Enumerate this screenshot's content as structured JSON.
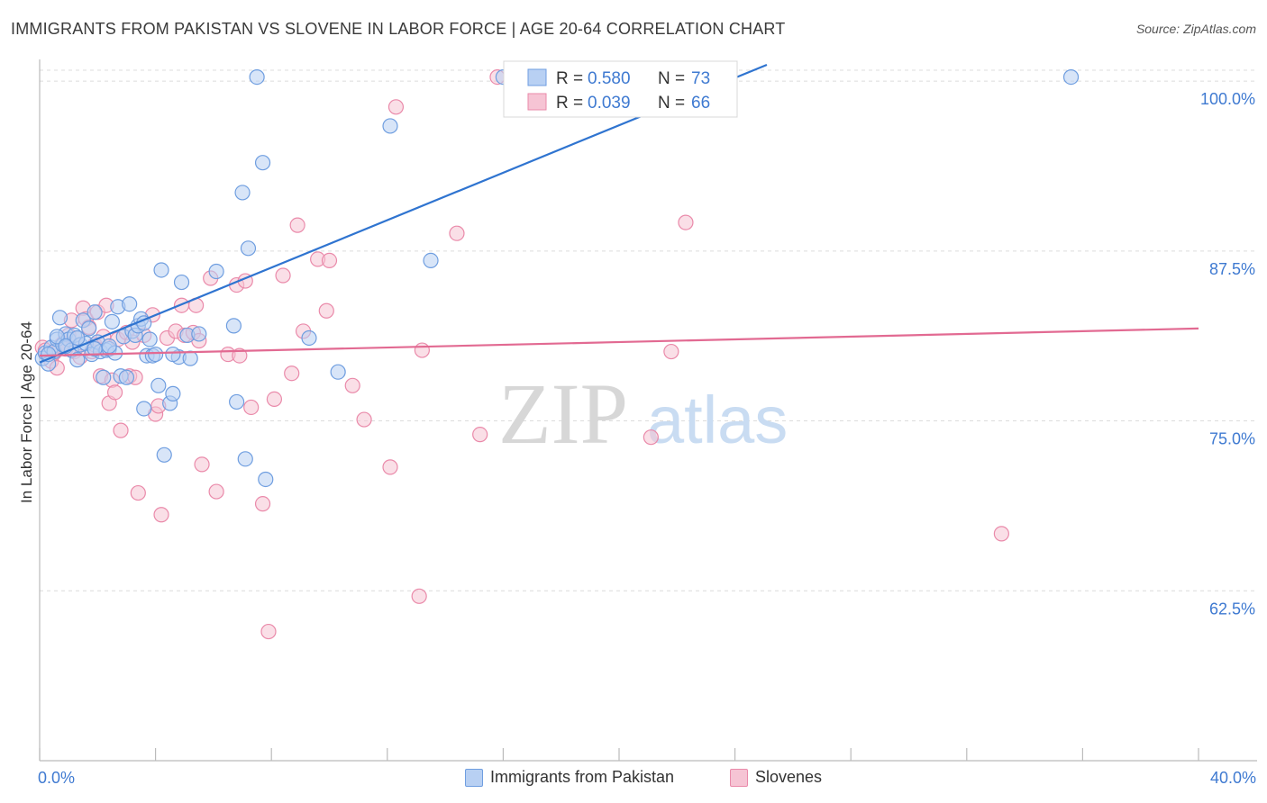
{
  "header": {
    "title": "IMMIGRANTS FROM PAKISTAN VS SLOVENE IN LABOR FORCE | AGE 20-64 CORRELATION CHART",
    "source": "Source: ZipAtlas.com"
  },
  "watermark": {
    "zip": "ZIP",
    "atlas": "atlas"
  },
  "colors": {
    "blue": "#6f9ee0",
    "blue_fill": "#b8d0f3",
    "blue_line": "#2f74d0",
    "pink": "#ea8aaa",
    "pink_fill": "#f6c4d4",
    "pink_line": "#e26a92",
    "tick_text": "#3f7ad1",
    "grid": "#dcdcdc"
  },
  "stats_legend": [
    {
      "r_label": "R =",
      "r_value": "0.580",
      "n_label": "N =",
      "n_value": "73"
    },
    {
      "r_label": "R =",
      "r_value": "0.039",
      "n_label": "N =",
      "n_value": "66"
    }
  ],
  "bottom_legend": [
    "Immigrants from Pakistan",
    "Slovenes"
  ],
  "chart_data": {
    "type": "scatter",
    "title": "IMMIGRANTS FROM PAKISTAN VS SLOVENE IN LABOR FORCE | AGE 20-64 CORRELATION CHART",
    "ylabel": "In Labor Force | Age 20-64",
    "xlabel": "",
    "xlim": [
      0,
      40
    ],
    "ylim": [
      50,
      101.2
    ],
    "x_tick_labels": [
      {
        "value": 0,
        "label": "0.0%"
      },
      {
        "value": 40,
        "label": "40.0%"
      }
    ],
    "y_tick_labels": [
      {
        "value": 100,
        "label": "100.0%"
      },
      {
        "value": 87.5,
        "label": "87.5%"
      },
      {
        "value": 75,
        "label": "75.0%"
      },
      {
        "value": 62.5,
        "label": "62.5%"
      }
    ],
    "series": [
      {
        "name": "Immigrants from Pakistan",
        "R": 0.58,
        "N": 73,
        "trend": {
          "x0": 0,
          "y0": 79.3,
          "x1": 40,
          "y1": 114.2
        },
        "points": [
          [
            0.1,
            79.6
          ],
          [
            0.2,
            80.0
          ],
          [
            0.3,
            79.2
          ],
          [
            0.4,
            80.4
          ],
          [
            0.5,
            80.1
          ],
          [
            0.6,
            81.0
          ],
          [
            0.7,
            82.6
          ],
          [
            0.8,
            80.6
          ],
          [
            0.9,
            81.4
          ],
          [
            1.0,
            81.0
          ],
          [
            1.1,
            80.2
          ],
          [
            1.2,
            81.3
          ],
          [
            1.3,
            79.5
          ],
          [
            1.4,
            80.6
          ],
          [
            1.5,
            82.4
          ],
          [
            1.6,
            80.7
          ],
          [
            1.7,
            81.8
          ],
          [
            1.8,
            79.9
          ],
          [
            1.9,
            83.0
          ],
          [
            2.0,
            80.8
          ],
          [
            2.1,
            80.1
          ],
          [
            2.2,
            78.2
          ],
          [
            2.3,
            80.2
          ],
          [
            2.4,
            80.3
          ],
          [
            2.5,
            82.3
          ],
          [
            2.6,
            80.0
          ],
          [
            2.7,
            83.4
          ],
          [
            2.8,
            78.3
          ],
          [
            2.9,
            81.2
          ],
          [
            3.0,
            78.2
          ],
          [
            3.1,
            83.6
          ],
          [
            3.2,
            81.6
          ],
          [
            3.3,
            81.3
          ],
          [
            3.4,
            82.0
          ],
          [
            3.5,
            82.5
          ],
          [
            3.6,
            75.9
          ],
          [
            3.7,
            79.8
          ],
          [
            3.8,
            81.0
          ],
          [
            3.9,
            79.8
          ],
          [
            4.0,
            79.9
          ],
          [
            4.1,
            77.6
          ],
          [
            4.2,
            86.1
          ],
          [
            4.3,
            72.5
          ],
          [
            4.5,
            76.3
          ],
          [
            4.6,
            77.0
          ],
          [
            4.8,
            79.7
          ],
          [
            4.9,
            85.2
          ],
          [
            5.1,
            81.3
          ],
          [
            5.2,
            79.6
          ],
          [
            5.5,
            81.4
          ],
          [
            6.1,
            86.0
          ],
          [
            6.7,
            82.0
          ],
          [
            6.8,
            76.4
          ],
          [
            7.0,
            91.8
          ],
          [
            7.1,
            72.2
          ],
          [
            7.2,
            87.7
          ],
          [
            7.5,
            100.3
          ],
          [
            7.7,
            94.0
          ],
          [
            7.8,
            70.7
          ],
          [
            9.3,
            81.1
          ],
          [
            10.3,
            78.6
          ],
          [
            12.1,
            96.7
          ],
          [
            13.5,
            86.8
          ],
          [
            16.0,
            100.3
          ],
          [
            35.6,
            100.3
          ],
          [
            0.6,
            81.2
          ],
          [
            0.9,
            80.5
          ],
          [
            1.3,
            81.1
          ],
          [
            2.4,
            80.5
          ],
          [
            3.6,
            82.2
          ],
          [
            0.3,
            79.9
          ],
          [
            1.9,
            80.3
          ],
          [
            4.6,
            79.9
          ]
        ]
      },
      {
        "name": "Slovenes",
        "R": 0.039,
        "N": 66,
        "trend": {
          "x0": 0,
          "y0": 79.8,
          "x1": 40,
          "y1": 81.8
        },
        "points": [
          [
            0.1,
            80.4
          ],
          [
            0.2,
            80.2
          ],
          [
            0.4,
            79.4
          ],
          [
            0.5,
            80.0
          ],
          [
            0.6,
            78.9
          ],
          [
            0.7,
            80.5
          ],
          [
            0.8,
            80.7
          ],
          [
            0.9,
            80.3
          ],
          [
            1.0,
            81.3
          ],
          [
            1.1,
            82.4
          ],
          [
            1.2,
            80.1
          ],
          [
            1.3,
            81.1
          ],
          [
            1.4,
            79.7
          ],
          [
            1.5,
            83.3
          ],
          [
            1.6,
            82.5
          ],
          [
            1.7,
            81.9
          ],
          [
            1.8,
            80.1
          ],
          [
            1.9,
            80.6
          ],
          [
            2.0,
            83.0
          ],
          [
            2.1,
            78.3
          ],
          [
            2.2,
            81.2
          ],
          [
            2.3,
            83.5
          ],
          [
            2.4,
            76.3
          ],
          [
            2.5,
            78.0
          ],
          [
            2.6,
            77.1
          ],
          [
            2.7,
            81.0
          ],
          [
            2.8,
            74.3
          ],
          [
            3.0,
            81.5
          ],
          [
            3.1,
            78.3
          ],
          [
            3.2,
            80.8
          ],
          [
            3.3,
            78.2
          ],
          [
            3.4,
            69.7
          ],
          [
            3.6,
            81.3
          ],
          [
            3.9,
            82.8
          ],
          [
            4.0,
            75.5
          ],
          [
            4.1,
            76.1
          ],
          [
            4.2,
            68.1
          ],
          [
            4.4,
            81.1
          ],
          [
            4.7,
            81.6
          ],
          [
            4.9,
            83.5
          ],
          [
            5.0,
            81.3
          ],
          [
            5.3,
            81.5
          ],
          [
            5.4,
            83.5
          ],
          [
            5.5,
            80.9
          ],
          [
            5.6,
            71.8
          ],
          [
            5.9,
            85.5
          ],
          [
            6.1,
            69.8
          ],
          [
            6.5,
            79.9
          ],
          [
            6.8,
            85.0
          ],
          [
            6.9,
            79.8
          ],
          [
            7.1,
            85.3
          ],
          [
            7.3,
            76.0
          ],
          [
            7.7,
            68.9
          ],
          [
            7.9,
            59.5
          ],
          [
            8.1,
            76.6
          ],
          [
            8.4,
            85.7
          ],
          [
            8.7,
            78.5
          ],
          [
            8.9,
            89.4
          ],
          [
            9.1,
            81.6
          ],
          [
            9.6,
            86.9
          ],
          [
            9.9,
            83.1
          ],
          [
            10.8,
            77.6
          ],
          [
            11.2,
            75.1
          ],
          [
            12.1,
            71.6
          ],
          [
            12.3,
            98.1
          ],
          [
            13.2,
            80.2
          ]
        ]
      }
    ],
    "extra_points_note": "",
    "slovenes_extra": [
      [
        13.1,
        62.1
      ],
      [
        15.2,
        74.0
      ],
      [
        15.8,
        100.3
      ],
      [
        16.7,
        100.3
      ],
      [
        21.1,
        73.8
      ],
      [
        21.8,
        80.1
      ],
      [
        22.3,
        89.6
      ],
      [
        33.2,
        66.7
      ],
      [
        14.4,
        88.8
      ],
      [
        10.0,
        86.8
      ]
    ]
  }
}
